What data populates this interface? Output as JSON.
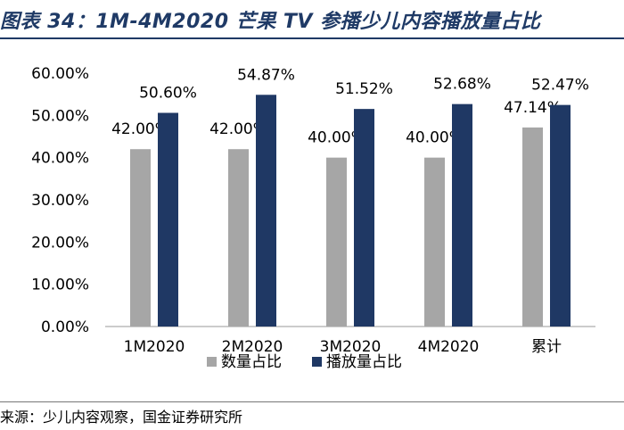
{
  "header": {
    "title": "图表 34：1M-4M2020 芒果 TV 参播少儿内容播放量占比"
  },
  "footer": {
    "source": "来源：少儿内容观察，国金证券研究所"
  },
  "colors": {
    "series1": "#a6a6a6",
    "series2": "#1f3864",
    "title": "#1f3a66"
  },
  "chart_data": {
    "type": "bar",
    "categories": [
      "1M2020",
      "2M2020",
      "3M2020",
      "4M2020",
      "累计"
    ],
    "series": [
      {
        "name": "数量占比",
        "values": [
          42.0,
          42.0,
          40.0,
          40.0,
          47.14
        ],
        "labels": [
          "42.00%",
          "42.00%",
          "40.00%",
          "40.00%",
          "47.14%"
        ]
      },
      {
        "name": "播放量占比",
        "values": [
          50.6,
          54.87,
          51.52,
          52.68,
          52.47
        ],
        "labels": [
          "50.60%",
          "54.87%",
          "51.52%",
          "52.68%",
          "52.47%"
        ]
      }
    ],
    "yticks": [
      "0.00%",
      "10.00%",
      "20.00%",
      "30.00%",
      "40.00%",
      "50.00%",
      "60.00%"
    ],
    "ylim": [
      0,
      60
    ],
    "grid": false,
    "legend_position": "bottom"
  }
}
